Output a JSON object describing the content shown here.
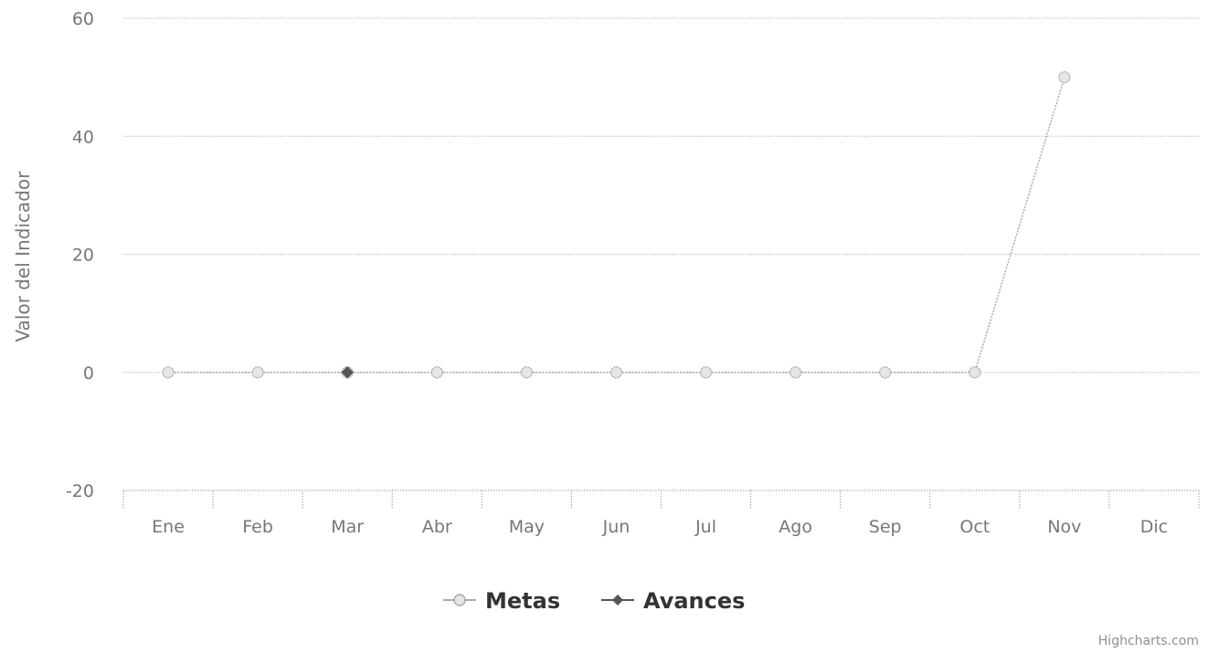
{
  "chart_data": {
    "type": "line",
    "categories": [
      "Ene",
      "Feb",
      "Mar",
      "Abr",
      "May",
      "Jun",
      "Jul",
      "Ago",
      "Sep",
      "Oct",
      "Nov",
      "Dic"
    ],
    "series": [
      {
        "name": "Metas",
        "values": [
          0,
          0,
          0,
          0,
          0,
          0,
          0,
          0,
          0,
          0,
          50,
          null
        ],
        "color": "#aaaaaa",
        "marker": "circle",
        "line_style": "dotted"
      },
      {
        "name": "Avances",
        "values": [
          null,
          null,
          0,
          null,
          null,
          null,
          null,
          null,
          null,
          null,
          null,
          null
        ],
        "color": "#555555",
        "marker": "diamond",
        "line_style": "dotted"
      }
    ],
    "title": "",
    "xlabel": "",
    "ylabel": "Valor del Indicador",
    "ylim": [
      -20,
      60
    ],
    "yticks": [
      -20,
      0,
      20,
      40,
      60
    ],
    "grid": true,
    "legend_position": "bottom-center",
    "credits": "Highcharts.com"
  }
}
